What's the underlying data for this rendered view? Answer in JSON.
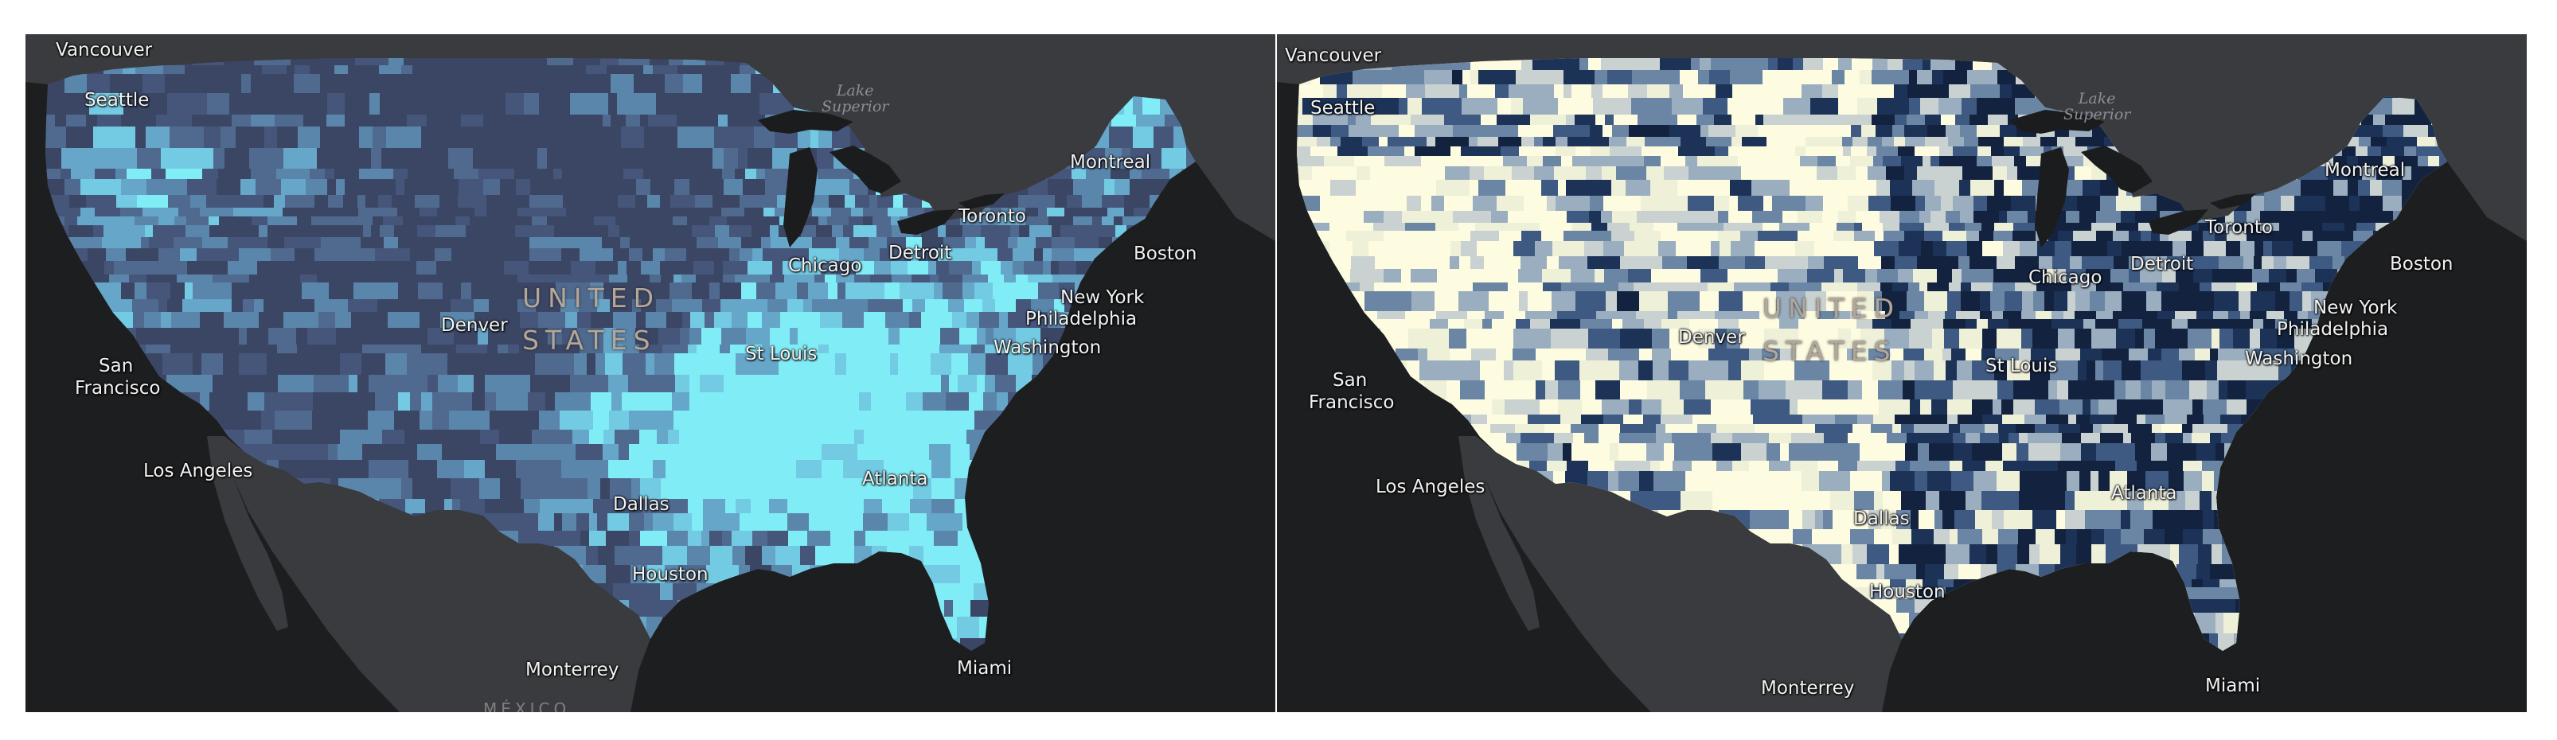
{
  "panels": [
    {
      "id": "left",
      "theme": {
        "background": "#1d1e20",
        "land": "#3a3b3e",
        "lakes": "#1b1c1e",
        "us_base": "#3d4864",
        "palette": [
          "#3b4664",
          "#45567a",
          "#4f6a8e",
          "#5b86ab",
          "#66a6c8",
          "#73cbe3",
          "#80ecf6"
        ]
      },
      "labels": {
        "vancouver": "Vancouver",
        "seattle": "Seattle",
        "san_francisco_1": "San",
        "san_francisco_2": "Francisco",
        "los_angeles": "Los Angeles",
        "denver": "Denver",
        "country_1": "UNITED",
        "country_2": "STATES",
        "lake_superior_1": "Lake",
        "lake_superior_2": "Superior",
        "chicago": "Chicago",
        "detroit": "Detroit",
        "toronto": "Toronto",
        "montreal": "Montreal",
        "boston": "Boston",
        "new_york": "New York",
        "philadelphia": "Philadelphia",
        "washington": "Washington",
        "st_louis": "St Louis",
        "dallas": "Dallas",
        "houston": "Houston",
        "atlanta": "Atlanta",
        "monterrey": "Monterrey",
        "miami": "Miami",
        "mexico": "MÉXICO"
      }
    },
    {
      "id": "right",
      "theme": {
        "background": "#1d1e20",
        "land": "#3a3b3e",
        "lakes": "#1b1c1e",
        "us_base": "#fbf8dc",
        "palette": [
          "#fdfbe0",
          "#eef0d8",
          "#c9d2d0",
          "#9aaec0",
          "#6b86a5",
          "#3e5a82",
          "#1d3257",
          "#13233f"
        ]
      },
      "labels": {
        "vancouver": "Vancouver",
        "seattle": "Seattle",
        "san_francisco_1": "San",
        "san_francisco_2": "Francisco",
        "los_angeles": "Los Angeles",
        "denver": "Denver",
        "country_1": "UNITED",
        "country_2": "STATES",
        "lake_superior_1": "Lake",
        "lake_superior_2": "Superior",
        "chicago": "Chicago",
        "detroit": "Detroit",
        "toronto": "Toronto",
        "montreal": "Montreal",
        "boston": "Boston",
        "new_york": "New York",
        "philadelphia": "Philadelphia",
        "washington": "Washington",
        "st_louis": "St Louis",
        "dallas": "Dallas",
        "houston": "Houston",
        "atlanta": "Atlanta",
        "monterrey": "Monterrey",
        "miami": "Miami"
      }
    }
  ]
}
